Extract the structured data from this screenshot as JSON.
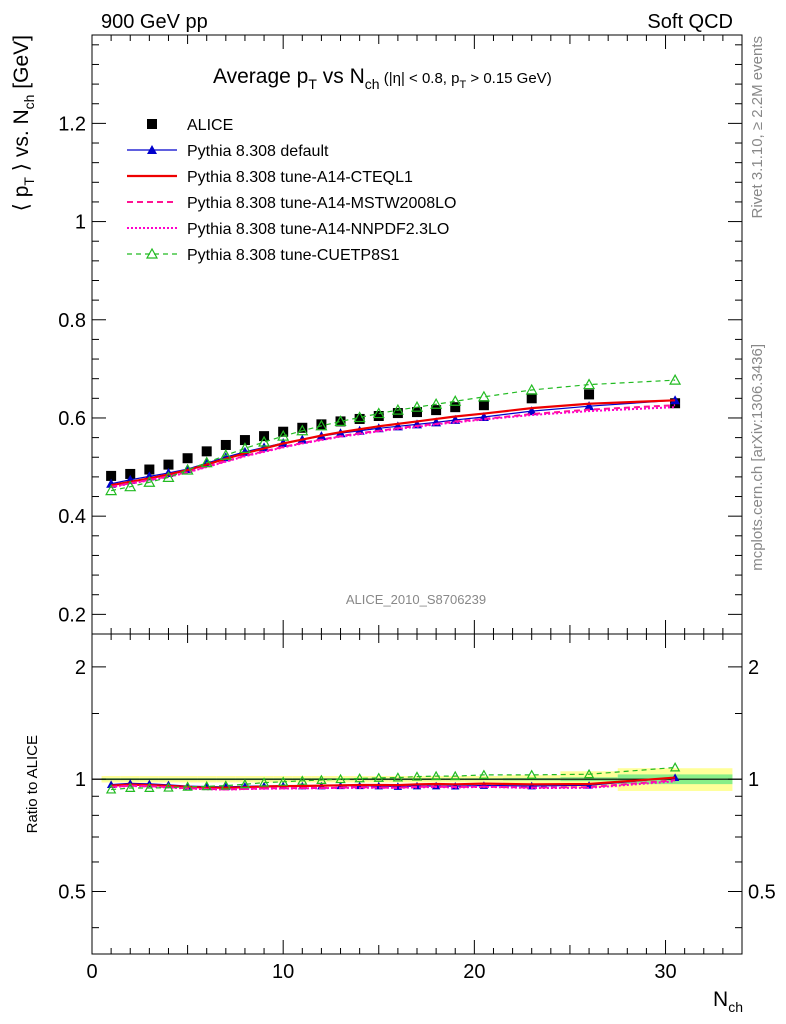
{
  "header": {
    "left": "900 GeV pp",
    "right": "Soft QCD"
  },
  "side_labels": {
    "rivet": "Rivet 3.1.10, ≥ 2.2M events",
    "mcplots": "mcplots.cern.ch [arXiv:1306.3436]"
  },
  "colors": {
    "alice": "#000000",
    "default": "#0000cc",
    "cteql1": "#ee0000",
    "mstw": "#ff1493",
    "nnpdf": "#ff00cc",
    "cuetp8s1": "#22bb22",
    "band_yellow": "#ffff99",
    "band_green": "#88ee88"
  },
  "chart_data": [
    {
      "type": "scatter",
      "title": "Average p_T vs N_ch (|η| < 0.8, p_T > 0.15 GeV)",
      "title_parts": {
        "a": "Average p",
        "a_sub": "T",
        "b": " vs N",
        "b_sub": "ch",
        "c": " (|η| < 0.8, p",
        "c_sub": "T",
        "d": " > 0.15 GeV)"
      },
      "ylabel": "⟨ p_T ⟩ vs. N_ch [GeV]",
      "ylabel_parts": {
        "a": "⟨ p",
        "a_sub": "T",
        "b": " ⟩ vs. N",
        "b_sub": "ch",
        "c": " [GeV]"
      },
      "watermark": "ALICE_2010_S8706239",
      "xlim": [
        0,
        34
      ],
      "ylim": [
        0.16,
        1.38
      ],
      "yticks": [
        0.2,
        0.4,
        0.6,
        0.8,
        1,
        1.2
      ],
      "ytick_labels": [
        "0.2",
        "0.4",
        "0.6",
        "0.8",
        "1",
        "1.2"
      ],
      "legend_position": "top-left",
      "series": [
        {
          "name": "ALICE",
          "x": [
            1,
            2,
            3,
            4,
            5,
            6,
            7,
            8,
            9,
            10,
            11,
            12,
            13,
            14,
            15,
            16,
            17,
            18,
            19,
            20.5,
            23,
            26,
            30.5
          ],
          "y": [
            0.482,
            0.486,
            0.495,
            0.505,
            0.518,
            0.532,
            0.545,
            0.555,
            0.563,
            0.572,
            0.58,
            0.587,
            0.593,
            0.598,
            0.604,
            0.61,
            0.612,
            0.616,
            0.622,
            0.626,
            0.64,
            0.648,
            0.63
          ]
        },
        {
          "name": "Pythia 8.308 default",
          "x": [
            1,
            2,
            3,
            4,
            5,
            6,
            7,
            8,
            9,
            10,
            11,
            12,
            13,
            14,
            15,
            16,
            17,
            18,
            19,
            20.5,
            23,
            26,
            30.5
          ],
          "y": [
            0.466,
            0.474,
            0.481,
            0.488,
            0.496,
            0.508,
            0.52,
            0.531,
            0.54,
            0.549,
            0.556,
            0.563,
            0.569,
            0.574,
            0.579,
            0.583,
            0.587,
            0.591,
            0.596,
            0.602,
            0.614,
            0.624,
            0.636
          ]
        },
        {
          "name": "Pythia 8.308 tune-A14-CTEQL1",
          "x": [
            1,
            2,
            3,
            4,
            5,
            6,
            7,
            8,
            9,
            10,
            11,
            12,
            13,
            14,
            15,
            16,
            17,
            18,
            19,
            20.5,
            23,
            26,
            30.5
          ],
          "y": [
            0.463,
            0.47,
            0.477,
            0.485,
            0.494,
            0.505,
            0.517,
            0.528,
            0.538,
            0.548,
            0.556,
            0.564,
            0.571,
            0.577,
            0.583,
            0.588,
            0.593,
            0.598,
            0.603,
            0.609,
            0.62,
            0.629,
            0.636
          ]
        },
        {
          "name": "Pythia 8.308 tune-A14-MSTW2008LO",
          "x": [
            1,
            2,
            3,
            4,
            5,
            6,
            7,
            8,
            9,
            10,
            11,
            12,
            13,
            14,
            15,
            16,
            17,
            18,
            19,
            20.5,
            23,
            26,
            30.5
          ],
          "y": [
            0.46,
            0.467,
            0.474,
            0.481,
            0.49,
            0.501,
            0.512,
            0.523,
            0.532,
            0.541,
            0.549,
            0.556,
            0.563,
            0.569,
            0.574,
            0.579,
            0.584,
            0.588,
            0.593,
            0.598,
            0.608,
            0.617,
            0.626
          ]
        },
        {
          "name": "Pythia 8.308 tune-A14-NNPDF2.3LO",
          "x": [
            1,
            2,
            3,
            4,
            5,
            6,
            7,
            8,
            9,
            10,
            11,
            12,
            13,
            14,
            15,
            16,
            17,
            18,
            19,
            20.5,
            23,
            26,
            30.5
          ],
          "y": [
            0.459,
            0.466,
            0.473,
            0.48,
            0.489,
            0.5,
            0.511,
            0.522,
            0.531,
            0.54,
            0.548,
            0.555,
            0.562,
            0.567,
            0.573,
            0.578,
            0.582,
            0.587,
            0.591,
            0.597,
            0.606,
            0.614,
            0.622
          ]
        },
        {
          "name": "Pythia 8.308 tune-CUETP8S1",
          "x": [
            1,
            2,
            3,
            4,
            5,
            6,
            7,
            8,
            9,
            10,
            11,
            12,
            13,
            14,
            15,
            16,
            17,
            18,
            19,
            20.5,
            23,
            26,
            30.5
          ],
          "y": [
            0.452,
            0.46,
            0.469,
            0.479,
            0.494,
            0.509,
            0.524,
            0.538,
            0.551,
            0.563,
            0.574,
            0.584,
            0.593,
            0.601,
            0.609,
            0.616,
            0.622,
            0.628,
            0.634,
            0.643,
            0.657,
            0.668,
            0.677
          ]
        }
      ]
    },
    {
      "type": "scatter",
      "ylabel": "Ratio to ALICE",
      "xlabel": "N_ch",
      "xlabel_parts": {
        "a": "N",
        "a_sub": "ch"
      },
      "xlim": [
        0,
        34
      ],
      "ylim": [
        0.34,
        2.45
      ],
      "log_y": true,
      "yticks": [
        0.5,
        1,
        2
      ],
      "ytick_labels": [
        "0.5",
        "1",
        "2"
      ],
      "xticks": [
        0,
        10,
        20,
        30
      ],
      "xtick_labels": [
        "0",
        "10",
        "20",
        "30"
      ],
      "bands": {
        "x_edges": [
          0.5,
          1.5,
          2.5,
          3.5,
          4.5,
          5.5,
          6.5,
          7.5,
          8.5,
          9.5,
          10.5,
          11.5,
          12.5,
          13.5,
          14.5,
          15.5,
          16.5,
          17.5,
          18.5,
          19.5,
          21.5,
          24.5,
          27.5,
          33.5
        ],
        "yellow_halfwidth": [
          0.02,
          0.02,
          0.02,
          0.02,
          0.02,
          0.02,
          0.02,
          0.02,
          0.02,
          0.02,
          0.02,
          0.02,
          0.02,
          0.02,
          0.02,
          0.02,
          0.02,
          0.02,
          0.02,
          0.02,
          0.025,
          0.05,
          0.07
        ],
        "green_halfwidth": [
          0.006,
          0.006,
          0.006,
          0.006,
          0.006,
          0.006,
          0.006,
          0.006,
          0.006,
          0.006,
          0.006,
          0.006,
          0.006,
          0.006,
          0.006,
          0.006,
          0.006,
          0.006,
          0.006,
          0.006,
          0.008,
          0.012,
          0.03
        ]
      },
      "series": [
        {
          "name": "Pythia 8.308 default",
          "y": [
            0.967,
            0.975,
            0.972,
            0.966,
            0.958,
            0.955,
            0.954,
            0.957,
            0.959,
            0.96,
            0.959,
            0.959,
            0.96,
            0.96,
            0.959,
            0.956,
            0.959,
            0.959,
            0.958,
            0.962,
            0.959,
            0.963,
            1.01
          ]
        },
        {
          "name": "Pythia 8.308 tune-A14-CTEQL1",
          "y": [
            0.961,
            0.967,
            0.964,
            0.96,
            0.954,
            0.949,
            0.949,
            0.951,
            0.956,
            0.958,
            0.959,
            0.961,
            0.963,
            0.965,
            0.965,
            0.964,
            0.969,
            0.971,
            0.969,
            0.973,
            0.969,
            0.971,
            1.01
          ]
        },
        {
          "name": "Pythia 8.308 tune-A14-MSTW2008LO",
          "y": [
            0.954,
            0.961,
            0.958,
            0.952,
            0.946,
            0.942,
            0.939,
            0.942,
            0.945,
            0.946,
            0.947,
            0.947,
            0.949,
            0.952,
            0.95,
            0.949,
            0.954,
            0.955,
            0.953,
            0.955,
            0.95,
            0.952,
            0.994
          ]
        },
        {
          "name": "Pythia 8.308 tune-A14-NNPDF2.3LO",
          "y": [
            0.952,
            0.959,
            0.956,
            0.95,
            0.944,
            0.94,
            0.938,
            0.941,
            0.943,
            0.944,
            0.945,
            0.946,
            0.948,
            0.948,
            0.949,
            0.948,
            0.951,
            0.953,
            0.95,
            0.954,
            0.947,
            0.948,
            0.987
          ]
        },
        {
          "name": "Pythia 8.308 tune-CUETP8S1",
          "y": [
            0.938,
            0.947,
            0.947,
            0.949,
            0.954,
            0.957,
            0.961,
            0.969,
            0.979,
            0.984,
            0.99,
            0.995,
            1.0,
            1.005,
            1.008,
            1.01,
            1.016,
            1.019,
            1.019,
            1.027,
            1.027,
            1.031,
            1.075
          ]
        }
      ]
    }
  ]
}
